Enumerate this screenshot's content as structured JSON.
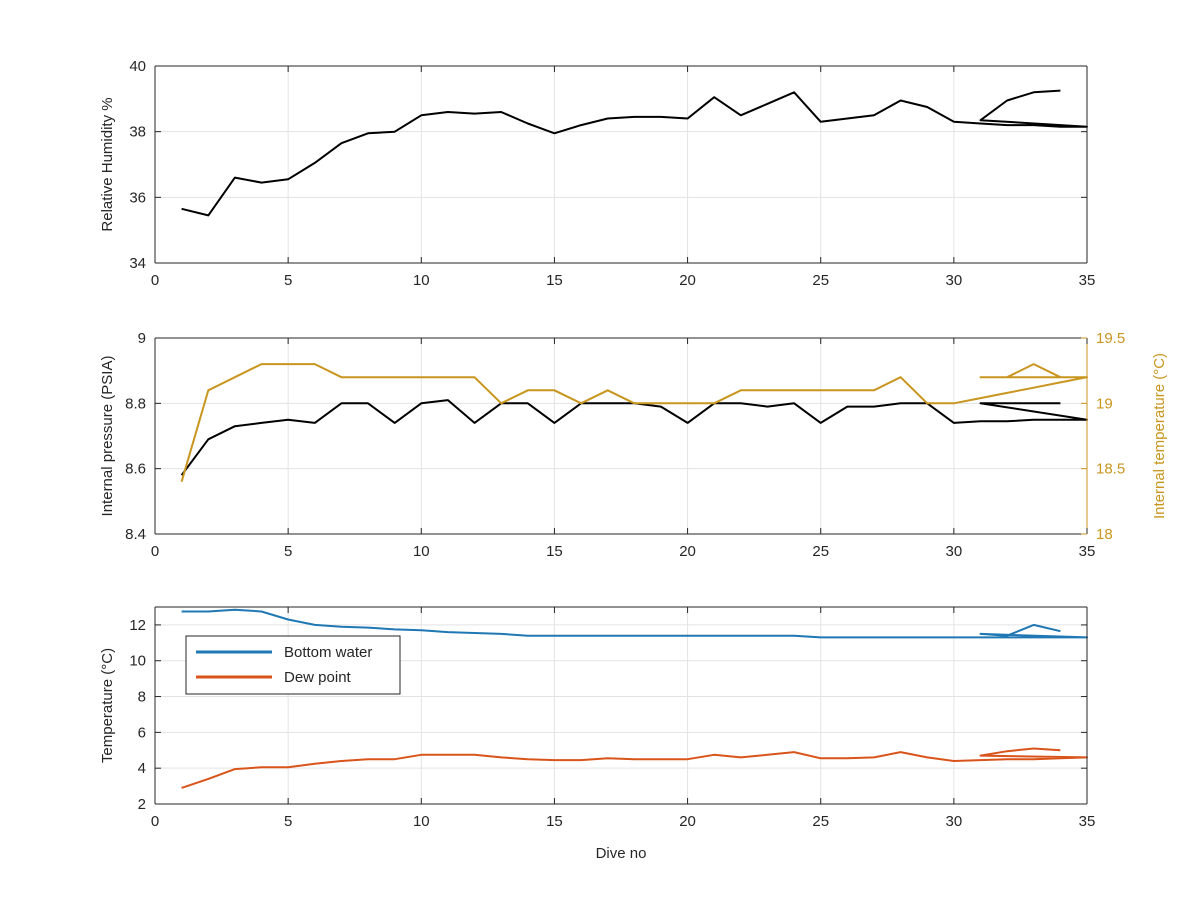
{
  "chart_data": [
    {
      "type": "line",
      "title": "",
      "xlabel": "",
      "ylabel": "Relative Humidity %",
      "xlim": [
        0,
        35
      ],
      "ylim": [
        34,
        40
      ],
      "xticks": [
        0,
        5,
        10,
        15,
        20,
        25,
        30,
        35
      ],
      "yticks": [
        34,
        36,
        38,
        40
      ],
      "grid": true,
      "series": [
        {
          "color": "#000000",
          "x": [
            1,
            2,
            3,
            4,
            5,
            6,
            7,
            8,
            9,
            10,
            11,
            12,
            13,
            14,
            15,
            16,
            17,
            18,
            19,
            20,
            21,
            22,
            23,
            24,
            25,
            26,
            27,
            28,
            29,
            30,
            31,
            32,
            33,
            34,
            35,
            31,
            32,
            33,
            34
          ],
          "y": [
            35.65,
            35.45,
            36.6,
            36.45,
            36.55,
            37.05,
            37.65,
            37.95,
            38.0,
            38.5,
            38.6,
            38.55,
            38.6,
            38.25,
            37.95,
            38.2,
            38.4,
            38.45,
            38.45,
            38.4,
            39.05,
            38.5,
            38.85,
            39.2,
            38.3,
            38.4,
            38.5,
            38.95,
            38.75,
            38.3,
            38.25,
            38.2,
            38.2,
            38.15,
            38.15,
            38.35,
            38.95,
            39.2,
            39.25
          ]
        }
      ]
    },
    {
      "type": "line",
      "title": "",
      "xlabel": "",
      "ylabel": "Internal pressure (PSIA)",
      "ylabel_right": "Internal temperature (°C)",
      "xlim": [
        0,
        35
      ],
      "ylim": [
        8.4,
        9
      ],
      "ylim_right": [
        18,
        19.5
      ],
      "xticks": [
        0,
        5,
        10,
        15,
        20,
        25,
        30,
        35
      ],
      "yticks": [
        8.4,
        8.6,
        8.8,
        9
      ],
      "yticks_right": [
        18,
        18.5,
        19,
        19.5
      ],
      "grid": true,
      "series": [
        {
          "axis": "left",
          "color": "#000000",
          "x": [
            1,
            2,
            3,
            4,
            5,
            6,
            7,
            8,
            9,
            10,
            11,
            12,
            13,
            14,
            15,
            16,
            17,
            18,
            19,
            20,
            21,
            22,
            23,
            24,
            25,
            26,
            27,
            28,
            29,
            30,
            31,
            32,
            33,
            34,
            35,
            31,
            32,
            33,
            34
          ],
          "y": [
            8.58,
            8.69,
            8.73,
            8.74,
            8.75,
            8.74,
            8.8,
            8.8,
            8.74,
            8.8,
            8.81,
            8.74,
            8.8,
            8.8,
            8.74,
            8.8,
            8.8,
            8.8,
            8.79,
            8.74,
            8.8,
            8.8,
            8.79,
            8.8,
            8.74,
            8.79,
            8.79,
            8.8,
            8.8,
            8.74,
            8.745,
            8.745,
            8.75,
            8.75,
            8.75,
            8.8,
            8.8,
            8.8,
            8.8
          ]
        },
        {
          "axis": "right",
          "color": "#C8961E",
          "x": [
            1,
            2,
            3,
            4,
            5,
            6,
            7,
            8,
            9,
            10,
            11,
            12,
            13,
            14,
            15,
            16,
            17,
            18,
            19,
            20,
            21,
            22,
            23,
            24,
            25,
            26,
            27,
            28,
            29,
            30,
            31,
            32,
            33,
            34,
            35,
            31,
            32,
            33,
            34
          ],
          "y": [
            18.4,
            19.1,
            19.2,
            19.3,
            19.3,
            19.3,
            19.2,
            19.2,
            19.2,
            19.2,
            19.2,
            19.2,
            19.0,
            19.1,
            19.1,
            19.0,
            19.1,
            19.0,
            19.0,
            19.0,
            19.0,
            19.1,
            19.1,
            19.1,
            19.1,
            19.1,
            19.1,
            19.2,
            19.0,
            19.0,
            19.04,
            19.08,
            19.12,
            19.16,
            19.2,
            19.2,
            19.2,
            19.3,
            19.2
          ]
        }
      ]
    },
    {
      "type": "line",
      "title": "",
      "xlabel": "Dive no",
      "ylabel": "Temperature (°C)",
      "xlim": [
        0,
        35
      ],
      "ylim": [
        2,
        13
      ],
      "xticks": [
        0,
        5,
        10,
        15,
        20,
        25,
        30,
        35
      ],
      "yticks": [
        2,
        4,
        6,
        8,
        10,
        12
      ],
      "grid": true,
      "legend": "top-left",
      "series": [
        {
          "name": "Bottom water",
          "color": "#1F77B4",
          "x": [
            1,
            2,
            3,
            4,
            5,
            6,
            7,
            8,
            9,
            10,
            11,
            12,
            13,
            14,
            15,
            16,
            17,
            18,
            19,
            20,
            21,
            22,
            23,
            24,
            25,
            26,
            27,
            28,
            29,
            30,
            31,
            32,
            33,
            34,
            35,
            31,
            32,
            33,
            34
          ],
          "y": [
            12.75,
            12.75,
            12.85,
            12.75,
            12.3,
            12.0,
            11.9,
            11.85,
            11.75,
            11.7,
            11.6,
            11.55,
            11.5,
            11.4,
            11.4,
            11.4,
            11.4,
            11.4,
            11.4,
            11.4,
            11.4,
            11.4,
            11.4,
            11.4,
            11.3,
            11.3,
            11.3,
            11.3,
            11.3,
            11.3,
            11.3,
            11.3,
            11.3,
            11.3,
            11.3,
            11.5,
            11.4,
            12.0,
            11.65
          ]
        },
        {
          "name": "Dew point",
          "color": "#D9541A",
          "x": [
            1,
            2,
            3,
            4,
            5,
            6,
            7,
            8,
            9,
            10,
            11,
            12,
            13,
            14,
            15,
            16,
            17,
            18,
            19,
            20,
            21,
            22,
            23,
            24,
            25,
            26,
            27,
            28,
            29,
            30,
            31,
            32,
            33,
            34,
            35,
            31,
            32,
            33,
            34
          ],
          "y": [
            2.9,
            3.4,
            3.95,
            4.05,
            4.05,
            4.25,
            4.4,
            4.5,
            4.5,
            4.75,
            4.75,
            4.75,
            4.6,
            4.5,
            4.45,
            4.45,
            4.55,
            4.5,
            4.5,
            4.5,
            4.75,
            4.6,
            4.75,
            4.9,
            4.55,
            4.55,
            4.6,
            4.9,
            4.6,
            4.4,
            4.45,
            4.5,
            4.5,
            4.55,
            4.6,
            4.7,
            4.95,
            5.1,
            5.0
          ]
        }
      ]
    }
  ]
}
